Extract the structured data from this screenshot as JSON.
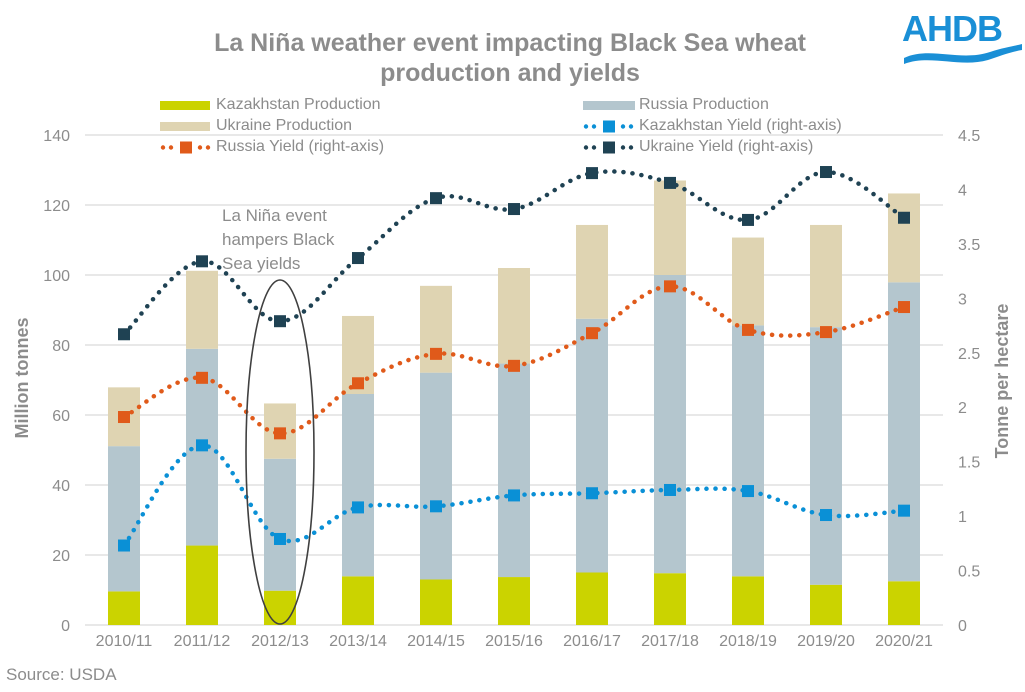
{
  "logo": {
    "text": "AHDB",
    "color": "#1a8fd6"
  },
  "source": "Source: USDA",
  "annotation": {
    "lines": [
      "La Niña event",
      "hampers Black",
      "Sea yields"
    ],
    "highlight_category": "2012/13"
  },
  "chart_data": {
    "type": "bar",
    "subtype": "stacked-bar-with-lines",
    "title_lines": [
      "La Niña weather event impacting Black Sea wheat",
      "production and yields"
    ],
    "title": "La Niña weather event impacting Black Sea wheat production and yields",
    "xlabel": "",
    "ylabel": "Million tonnes",
    "y2label": "Tonne per hectare",
    "ylim": [
      0,
      140
    ],
    "y2lim": [
      0,
      4.5
    ],
    "yticks": [
      "0",
      "20",
      "40",
      "60",
      "80",
      "100",
      "120",
      "140"
    ],
    "y2ticks": [
      "0",
      "0.5",
      "1",
      "1.5",
      "2",
      "2.5",
      "3",
      "3.5",
      "4",
      "4.5"
    ],
    "grid": true,
    "legend_position": "top",
    "categories": [
      "2010/11",
      "2011/12",
      "2012/13",
      "2013/14",
      "2014/15",
      "2015/16",
      "2016/17",
      "2017/18",
      "2018/19",
      "2019/20",
      "2020/21"
    ],
    "bar_series": [
      {
        "name": "Kazakhstan Production",
        "color": "#cbd300",
        "values": [
          9.6,
          22.7,
          9.8,
          13.9,
          13.0,
          13.7,
          15.0,
          14.8,
          13.9,
          11.5,
          12.5
        ]
      },
      {
        "name": "Russia Production",
        "color": "#b4c6ce",
        "values": [
          41.5,
          56.2,
          37.7,
          52.1,
          59.1,
          61.0,
          72.5,
          85.2,
          71.7,
          73.6,
          85.4
        ]
      },
      {
        "name": "Ukraine Production",
        "color": "#dfd4b2",
        "values": [
          16.8,
          22.3,
          15.8,
          22.3,
          24.8,
          27.3,
          26.8,
          27.0,
          25.1,
          29.2,
          25.4
        ]
      }
    ],
    "line_series": [
      {
        "name": "Kazakhstan Yield (right-axis)",
        "color": "#0a90d6",
        "axis": "right",
        "values": [
          0.73,
          1.65,
          0.79,
          1.08,
          1.09,
          1.19,
          1.21,
          1.24,
          1.23,
          1.01,
          1.05
        ]
      },
      {
        "name": "Russia Yield (right-axis)",
        "color": "#e05a1a",
        "axis": "right",
        "values": [
          1.91,
          2.27,
          1.76,
          2.22,
          2.49,
          2.38,
          2.68,
          3.11,
          2.71,
          2.69,
          2.92
        ]
      },
      {
        "name": "Ukraine Yield (right-axis)",
        "color": "#1f4253",
        "axis": "right",
        "values": [
          2.67,
          3.34,
          2.79,
          3.37,
          3.92,
          3.82,
          4.15,
          4.06,
          3.72,
          4.16,
          3.74
        ]
      }
    ],
    "legend": [
      {
        "label": "Kazakhstan Production",
        "kind": "bar",
        "color": "#cbd300"
      },
      {
        "label": "Russia Production",
        "kind": "bar",
        "color": "#b4c6ce"
      },
      {
        "label": "Ukraine Production",
        "kind": "bar",
        "color": "#dfd4b2"
      },
      {
        "label": "Kazakhstan Yield (right-axis)",
        "kind": "line",
        "color": "#0a90d6"
      },
      {
        "label": "Russia Yield (right-axis)",
        "kind": "line",
        "color": "#e05a1a"
      },
      {
        "label": "Ukraine Yield (right-axis)",
        "kind": "line",
        "color": "#1f4253"
      }
    ]
  }
}
